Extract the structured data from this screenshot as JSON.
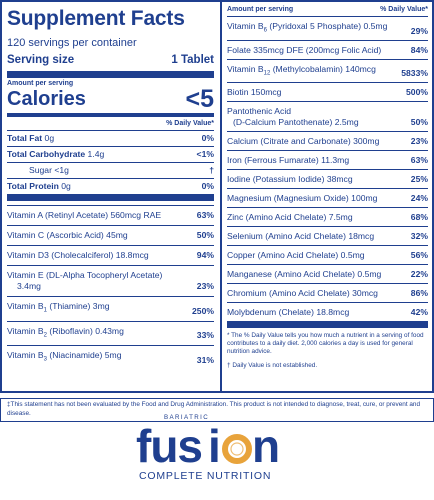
{
  "header": {
    "title": "Supplement Facts",
    "servings": "120 servings per container",
    "serving_size_label": "Serving size",
    "serving_size_value": "1 Tablet",
    "amount_per_serving": "Amount per serving",
    "calories_label": "Calories",
    "calories_value": "<5",
    "dv_head": "% Daily Value*"
  },
  "macros": [
    {
      "name": "Total Fat",
      "amount": " 0g",
      "pct": "0%"
    },
    {
      "name": "Total Carbohydrate",
      "amount": " 1.4g",
      "pct": "<1%"
    },
    {
      "name": "Sugar",
      "amount": " <1g",
      "pct": "†"
    },
    {
      "name": "Total Protein",
      "amount": " 0g",
      "pct": "0%"
    }
  ],
  "left_vitamins": [
    {
      "name": "Vitamin A (Retinyl Acetate) 560mcg RAE",
      "pct": "63%"
    },
    {
      "name": "Vitamin C (Ascorbic Acid) 45mg",
      "pct": "50%"
    },
    {
      "name": "Vitamin D3 (Cholecalciferol) 18.8mcg",
      "pct": "94%"
    },
    {
      "name": "Vitamin E (DL-Alpha Tocopheryl Acetate)",
      "name2": "3.4mg",
      "pct": "23%"
    },
    {
      "name": "Vitamin B",
      "sub": "1",
      "rest": " (Thiamine) 3mg",
      "pct": "250%"
    },
    {
      "name": "Vitamin B",
      "sub": "2",
      "rest": " (Riboflavin) 0.43mg",
      "pct": "33%"
    },
    {
      "name": "Vitamin B",
      "sub": "3",
      "rest": " (Niacinamide) 5mg",
      "pct": "31%"
    }
  ],
  "right": {
    "amount_per_serving": "Amount per serving",
    "dv_head": "% Daily Value*",
    "rows": [
      {
        "name": "Vitamin B",
        "sub": "6",
        "rest": " (Pyridoxal 5 Phosphate) 0.5mg",
        "pct": "29%"
      },
      {
        "name": "Folate 335mcg DFE (200mcg Folic Acid)",
        "pct": "84%"
      },
      {
        "name": "Vitamin B",
        "sub": "12",
        "rest": " (Methylcobalamin) 140mcg",
        "pct": "5833%"
      },
      {
        "name": "Biotin 150mcg",
        "pct": "500%"
      },
      {
        "name": "Pantothenic Acid",
        "name2": "(D-Calcium Pantothenate) 2.5mg",
        "pct": "50%"
      },
      {
        "name": "Calcium (Citrate and Carbonate) 300mg",
        "pct": "23%"
      },
      {
        "name": "Iron (Ferrous Fumarate) 11.3mg",
        "pct": "63%"
      },
      {
        "name": "Iodine (Potassium Iodide) 38mcg",
        "pct": "25%"
      },
      {
        "name": "Magnesium (Magnesium Oxide) 100mg",
        "pct": "24%"
      },
      {
        "name": "Zinc (Amino Acid Chelate) 7.5mg",
        "pct": "68%"
      },
      {
        "name": "Selenium (Amino Acid Chelate) 18mcg",
        "pct": "32%"
      },
      {
        "name": "Copper (Amino Acid Chelate) 0.5mg",
        "pct": "56%"
      },
      {
        "name": "Manganese (Amino Acid Chelate) 0.5mg",
        "pct": "22%"
      },
      {
        "name": "Chromium (Amino Acid Chelate) 30mcg",
        "pct": "86%"
      },
      {
        "name": "Molybdenum (Chelate) 18.8mcg",
        "pct": "42%"
      }
    ],
    "note_dv": "* The % Daily Value tells you how much a nutrient in a serving of food contributes to a daily diet. 2,000 calories a day is used for general nutrition advice.",
    "note_dagger": "† Daily Value is not established."
  },
  "disclaimer": "‡This statement has not been evaluated by the Food and Drug Administration. This product is not intended to diagnose, treat, cure, or prevent and disease.",
  "logo": {
    "small": "BARIATRIC",
    "word": "fusion",
    "sub": "COMPLETE NUTRITION",
    "accent_color": "#e8a33b",
    "brand_color": "#1f3f8f"
  }
}
